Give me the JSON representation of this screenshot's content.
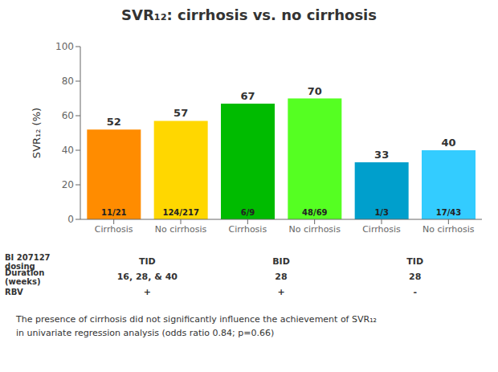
{
  "chart_data": {
    "type": "bar",
    "title": "SVR₁₂: cirrhosis vs. no cirrhosis",
    "ylabel": "SVR₁₂ (%)",
    "categories": [
      "Cirrhosis",
      "No cirrhosis",
      "Cirrhosis",
      "No cirrhosis",
      "Cirrhosis",
      "No cirrhosis"
    ],
    "values": [
      52,
      57,
      67,
      70,
      33,
      40
    ],
    "fraction_labels": [
      "11/21",
      "124/217",
      "6/9",
      "48/69",
      "1/3",
      "17/43"
    ],
    "colors": [
      "#FF8C00",
      "#FFD700",
      "#00BB00",
      "#55FF22",
      "#009FCC",
      "#33CCFF"
    ],
    "ylim": [
      0,
      100
    ],
    "yticks": [
      0,
      20,
      40,
      60,
      80,
      100
    ],
    "data_labels": true,
    "grid": false,
    "table": [
      {
        "label": "BI 207127 dosing",
        "values": [
          "TID",
          "BID",
          "TID"
        ]
      },
      {
        "label": "Duration (weeks)",
        "values": [
          "16, 28, & 40",
          "28",
          "28"
        ]
      },
      {
        "label": "RBV",
        "values": [
          "+",
          "+",
          "-"
        ]
      }
    ],
    "footnote": [
      "The presence of cirrhosis did not significantly influence the achievement of SVR₁₂",
      "in univariate regression analysis (odds ratio 0.84; p=0.66)"
    ]
  }
}
